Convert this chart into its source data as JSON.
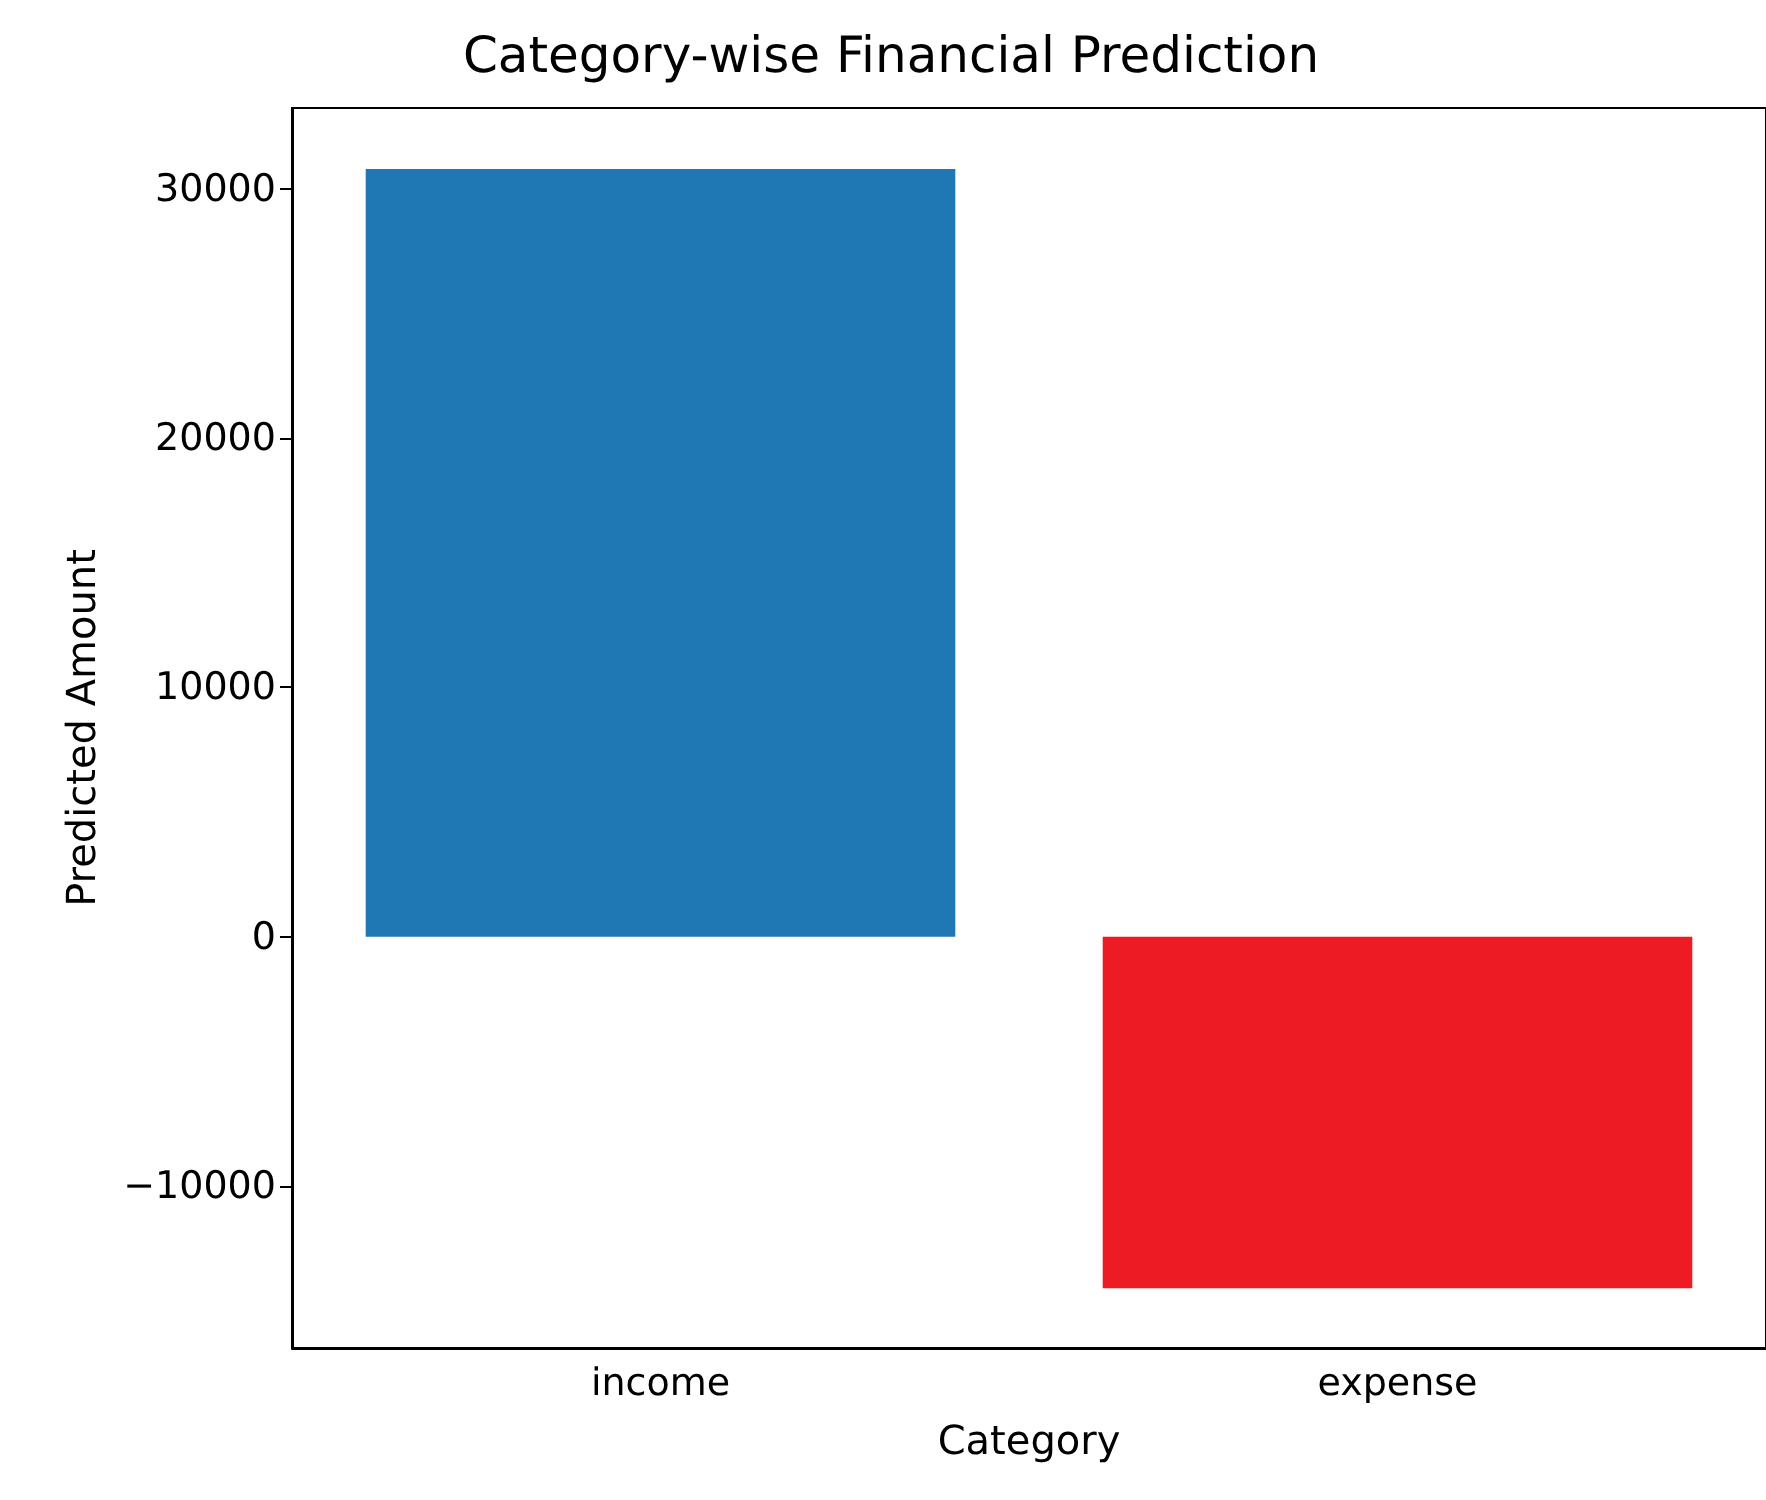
{
  "chart_data": {
    "type": "bar",
    "title": "Category-wise Financial Prediction",
    "xlabel": "Category",
    "ylabel": "Predicted Amount",
    "categories": [
      "income",
      "expense"
    ],
    "values": [
      30800,
      -14100
    ],
    "colors": [
      "#1f77b4",
      "#ed1c24"
    ],
    "ylim": [
      -16500,
      33250
    ],
    "yticks": [
      -10000,
      0,
      10000,
      20000,
      30000
    ],
    "grid": false
  }
}
